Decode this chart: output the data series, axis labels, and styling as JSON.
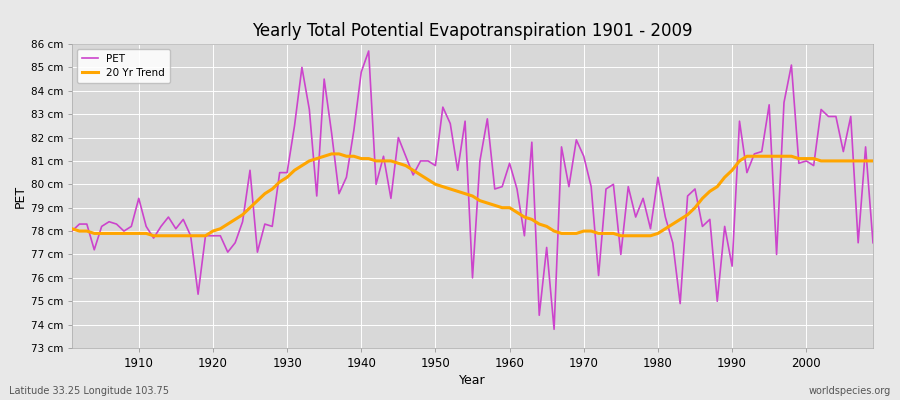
{
  "title": "Yearly Total Potential Evapotranspiration 1901 - 2009",
  "xlabel": "Year",
  "ylabel": "PET",
  "subtitle_left": "Latitude 33.25 Longitude 103.75",
  "subtitle_right": "worldspecies.org",
  "ylim": [
    73,
    86
  ],
  "pet_color": "#cc44cc",
  "trend_color": "#FFA500",
  "bg_color": "#e8e8e8",
  "plot_bg_color": "#d8d8d8",
  "grid_color": "#ffffff",
  "pet_data": {
    "1901": 78.0,
    "1902": 78.3,
    "1903": 78.3,
    "1904": 77.2,
    "1905": 78.2,
    "1906": 78.4,
    "1907": 78.3,
    "1908": 78.0,
    "1909": 78.2,
    "1910": 79.4,
    "1911": 78.2,
    "1912": 77.7,
    "1913": 78.2,
    "1914": 78.6,
    "1915": 78.1,
    "1916": 78.5,
    "1917": 77.8,
    "1918": 75.3,
    "1919": 77.8,
    "1920": 77.8,
    "1921": 77.8,
    "1922": 77.1,
    "1923": 77.5,
    "1924": 78.4,
    "1925": 80.6,
    "1926": 77.1,
    "1927": 78.3,
    "1928": 78.2,
    "1929": 80.5,
    "1930": 80.5,
    "1931": 82.5,
    "1932": 85.0,
    "1933": 83.2,
    "1934": 79.5,
    "1935": 84.5,
    "1936": 82.2,
    "1937": 79.6,
    "1938": 80.3,
    "1939": 82.3,
    "1940": 84.8,
    "1941": 85.7,
    "1942": 80.0,
    "1943": 81.2,
    "1944": 79.4,
    "1945": 82.0,
    "1946": 81.2,
    "1947": 80.4,
    "1948": 81.0,
    "1949": 81.0,
    "1950": 80.8,
    "1951": 83.3,
    "1952": 82.6,
    "1953": 80.6,
    "1954": 82.7,
    "1955": 76.0,
    "1956": 81.0,
    "1957": 82.8,
    "1958": 79.8,
    "1959": 79.9,
    "1960": 80.9,
    "1961": 79.8,
    "1962": 77.8,
    "1963": 81.8,
    "1964": 74.4,
    "1965": 77.3,
    "1966": 73.8,
    "1967": 81.6,
    "1968": 79.9,
    "1969": 81.9,
    "1970": 81.2,
    "1971": 79.9,
    "1972": 76.1,
    "1973": 79.8,
    "1974": 80.0,
    "1975": 77.0,
    "1976": 79.9,
    "1977": 78.6,
    "1978": 79.4,
    "1979": 78.1,
    "1980": 80.3,
    "1981": 78.6,
    "1982": 77.5,
    "1983": 74.9,
    "1984": 79.5,
    "1985": 79.8,
    "1986": 78.2,
    "1987": 78.5,
    "1988": 75.0,
    "1989": 78.2,
    "1990": 76.5,
    "1991": 82.7,
    "1992": 80.5,
    "1993": 81.3,
    "1994": 81.4,
    "1995": 83.4,
    "1996": 77.0,
    "1997": 83.5,
    "1998": 85.1,
    "1999": 80.9,
    "2000": 81.0,
    "2001": 80.8,
    "2002": 83.2,
    "2003": 82.9,
    "2004": 82.9,
    "2005": 81.4,
    "2006": 82.9,
    "2007": 77.5,
    "2008": 81.6,
    "2009": 77.5
  },
  "trend_data": {
    "1901": 78.1,
    "1902": 78.0,
    "1903": 78.0,
    "1904": 77.9,
    "1905": 77.9,
    "1906": 77.9,
    "1907": 77.9,
    "1908": 77.9,
    "1909": 77.9,
    "1910": 77.9,
    "1911": 77.9,
    "1912": 77.8,
    "1913": 77.8,
    "1914": 77.8,
    "1915": 77.8,
    "1916": 77.8,
    "1917": 77.8,
    "1918": 77.8,
    "1919": 77.8,
    "1920": 78.0,
    "1921": 78.1,
    "1922": 78.3,
    "1923": 78.5,
    "1924": 78.7,
    "1925": 79.0,
    "1926": 79.3,
    "1927": 79.6,
    "1928": 79.8,
    "1929": 80.1,
    "1930": 80.3,
    "1931": 80.6,
    "1932": 80.8,
    "1933": 81.0,
    "1934": 81.1,
    "1935": 81.2,
    "1936": 81.3,
    "1937": 81.3,
    "1938": 81.2,
    "1939": 81.2,
    "1940": 81.1,
    "1941": 81.1,
    "1942": 81.0,
    "1943": 81.0,
    "1944": 81.0,
    "1945": 80.9,
    "1946": 80.8,
    "1947": 80.6,
    "1948": 80.4,
    "1949": 80.2,
    "1950": 80.0,
    "1951": 79.9,
    "1952": 79.8,
    "1953": 79.7,
    "1954": 79.6,
    "1955": 79.5,
    "1956": 79.3,
    "1957": 79.2,
    "1958": 79.1,
    "1959": 79.0,
    "1960": 79.0,
    "1961": 78.8,
    "1962": 78.6,
    "1963": 78.5,
    "1964": 78.3,
    "1965": 78.2,
    "1966": 78.0,
    "1967": 77.9,
    "1968": 77.9,
    "1969": 77.9,
    "1970": 78.0,
    "1971": 78.0,
    "1972": 77.9,
    "1973": 77.9,
    "1974": 77.9,
    "1975": 77.8,
    "1976": 77.8,
    "1977": 77.8,
    "1978": 77.8,
    "1979": 77.8,
    "1980": 77.9,
    "1981": 78.1,
    "1982": 78.3,
    "1983": 78.5,
    "1984": 78.7,
    "1985": 79.0,
    "1986": 79.4,
    "1987": 79.7,
    "1988": 79.9,
    "1989": 80.3,
    "1990": 80.6,
    "1991": 81.0,
    "1992": 81.2,
    "1993": 81.2,
    "1994": 81.2,
    "1995": 81.2,
    "1996": 81.2,
    "1997": 81.2,
    "1998": 81.2,
    "1999": 81.1,
    "2000": 81.1,
    "2001": 81.1,
    "2002": 81.0,
    "2003": 81.0,
    "2004": 81.0,
    "2005": 81.0,
    "2006": 81.0,
    "2007": 81.0,
    "2008": 81.0,
    "2009": 81.0
  }
}
